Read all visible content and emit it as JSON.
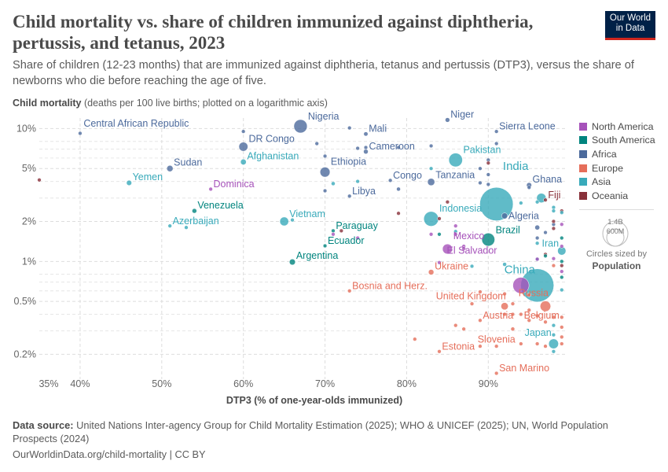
{
  "header": {
    "title": "Child mortality vs. share of children immunized against diphtheria, pertussis, and tetanus, 2023",
    "subtitle": "Share of children (12-23 months) that are immunized against diphtheria, tetanus and pertussis (DTP3), versus the share of newborns who die before reaching the age of five.",
    "logo_line1": "Our World",
    "logo_line2": "in Data"
  },
  "footer": {
    "source_label": "Data source:",
    "source_text": "United Nations Inter-agency Group for Child Mortality Estimation (2025); WHO & UNICEF (2025); UN, World Population Prospects (2024)",
    "url": "OurWorldinData.org/child-mortality | CC BY"
  },
  "size_legend": {
    "large": "1.4B",
    "small": "600M",
    "caption": "Circles sized by",
    "variable": "Population"
  },
  "chart_data": {
    "type": "scatter",
    "ylabel_bold": "Child mortality",
    "ylabel_rest": " (deaths per 100 live births; plotted on a logarithmic axis)",
    "xlabel": "DTP3 (% of one-year-olds immunized)",
    "x_scale": "linear",
    "y_scale": "log",
    "xlim": [
      35,
      99.5
    ],
    "ylim": [
      0.13,
      12
    ],
    "x_ticks": [
      35,
      40,
      50,
      60,
      70,
      80,
      90
    ],
    "x_tick_labels": [
      "35%",
      "40%",
      "50%",
      "60%",
      "70%",
      "80%",
      "90%"
    ],
    "y_ticks": [
      0.2,
      0.5,
      1,
      2,
      5,
      10
    ],
    "y_tick_labels": [
      "0.2%",
      "0.5%",
      "1%",
      "2%",
      "5%",
      "10%"
    ],
    "grid": true,
    "legend_position": "right",
    "regions": [
      {
        "name": "North America",
        "color": "#a652ba"
      },
      {
        "name": "South America",
        "color": "#00847e"
      },
      {
        "name": "Africa",
        "color": "#4c6a9c"
      },
      {
        "name": "Europe",
        "color": "#e56e5a"
      },
      {
        "name": "Asia",
        "color": "#38aaba"
      },
      {
        "name": "Oceania",
        "color": "#883039"
      }
    ],
    "point_fields": [
      "label",
      "region",
      "dtp3_percent",
      "child_mortality_percent",
      "population_millions"
    ],
    "points": [
      [
        "Central African Republic",
        "Africa",
        40,
        9.2,
        5
      ],
      [
        "Nigeria",
        "Africa",
        67,
        10.4,
        228
      ],
      [
        "DR Congo",
        "Africa",
        60,
        7.3,
        105
      ],
      [
        "Afghanistan",
        "Asia",
        60,
        5.6,
        42
      ],
      [
        "Sudan",
        "Africa",
        51,
        5.0,
        50
      ],
      [
        "Yemen",
        "Asia",
        46,
        3.9,
        35
      ],
      [
        "Dominica",
        "North America",
        56,
        3.5,
        0.1
      ],
      [
        "Venezuela",
        "South America",
        54,
        2.4,
        28
      ],
      [
        "Azerbaijan",
        "Asia",
        51,
        1.85,
        10
      ],
      [
        "Vietnam",
        "Asia",
        65,
        2.0,
        100
      ],
      [
        "Ethiopia",
        "Africa",
        70,
        4.7,
        128
      ],
      [
        "Mali",
        "Africa",
        75,
        9.1,
        23
      ],
      [
        "Cameroon",
        "Africa",
        75,
        6.7,
        28
      ],
      [
        "Congo",
        "Africa",
        78,
        4.07,
        6
      ],
      [
        "Libya",
        "Africa",
        73,
        3.1,
        7
      ],
      [
        "Niger",
        "Africa",
        85,
        11.6,
        27
      ],
      [
        "Sierra Leone",
        "Africa",
        91,
        9.5,
        8.6
      ],
      [
        "Pakistan",
        "Asia",
        86,
        5.8,
        240
      ],
      [
        "Tanzania",
        "Africa",
        83,
        3.96,
        67
      ],
      [
        "India",
        "Asia",
        91,
        2.7,
        1430
      ],
      [
        "Ghana",
        "Africa",
        95,
        3.75,
        34
      ],
      [
        "Fiji",
        "Oceania",
        97,
        2.9,
        0.9
      ],
      [
        "Algeria",
        "Africa",
        92,
        2.2,
        46
      ],
      [
        "Indonesia",
        "Asia",
        83,
        2.09,
        278
      ],
      [
        "Brazil",
        "South America",
        90,
        1.46,
        216
      ],
      [
        "Mexico",
        "North America",
        85,
        1.24,
        128
      ],
      [
        "El Salvador",
        "North America",
        87,
        1.3,
        6.3
      ],
      [
        "Iran",
        "Asia",
        99,
        1.2,
        89
      ],
      [
        "Paraguay",
        "South America",
        71,
        1.7,
        6.8
      ],
      [
        "Ecuador",
        "South America",
        70,
        1.31,
        18
      ],
      [
        "Argentina",
        "South America",
        66,
        0.99,
        46
      ],
      [
        "Ukraine",
        "Europe",
        83,
        0.83,
        38
      ],
      [
        "Bosnia and Herz.",
        "Europe",
        73,
        0.6,
        3.2
      ],
      [
        "China",
        "Asia",
        96,
        0.66,
        1410
      ],
      [
        "Russia",
        "Europe",
        97,
        0.46,
        144
      ],
      [
        "United Kingdom",
        "Europe",
        92,
        0.46,
        68
      ],
      [
        "Belgium",
        "Europe",
        95,
        0.36,
        11.8
      ],
      [
        "Austria",
        "Europe",
        89,
        0.36,
        9.1
      ],
      [
        "Japan",
        "Asia",
        98,
        0.24,
        124
      ],
      [
        "Slovenia",
        "Europe",
        91,
        0.23,
        2.1
      ],
      [
        "Estonia",
        "Europe",
        84,
        0.21,
        1.3
      ],
      [
        "San Marino",
        "Europe",
        91,
        0.144,
        0.03
      ],
      [
        "",
        "North America",
        94,
        0.66,
        335
      ],
      [
        "",
        "Asia",
        96.5,
        3.0,
        115
      ],
      [
        "",
        "Oceania",
        35,
        4.1,
        10
      ],
      [
        "",
        "Asia",
        53,
        1.8,
        2
      ],
      [
        "",
        "Asia",
        66,
        2.05,
        3
      ],
      [
        "",
        "Africa",
        60,
        9.5,
        2
      ],
      [
        "",
        "Africa",
        69,
        7.7,
        3
      ],
      [
        "",
        "Africa",
        70,
        6.2,
        5
      ],
      [
        "",
        "Africa",
        73,
        10.1,
        2
      ],
      [
        "",
        "Africa",
        74,
        7.1,
        6
      ],
      [
        "",
        "Africa",
        79,
        7.2,
        3
      ],
      [
        "",
        "Africa",
        83,
        7.4,
        3
      ],
      [
        "",
        "Africa",
        89,
        5.0,
        3
      ],
      [
        "",
        "Africa",
        90,
        5.8,
        4
      ],
      [
        "",
        "Africa",
        90,
        4.5,
        5
      ],
      [
        "",
        "Africa",
        89,
        3.9,
        3
      ],
      [
        "",
        "Africa",
        91,
        7.7,
        3
      ],
      [
        "",
        "Africa",
        95,
        3.6,
        4
      ],
      [
        "",
        "Africa",
        96,
        1.8,
        30
      ],
      [
        "",
        "Africa",
        97,
        1.65,
        12
      ],
      [
        "",
        "Africa",
        79,
        3.5,
        20
      ],
      [
        "",
        "Africa",
        70,
        3.4,
        2
      ],
      [
        "",
        "Africa",
        75,
        7.2,
        2
      ],
      [
        "",
        "Africa",
        90,
        3.8,
        3
      ],
      [
        "",
        "Africa",
        98,
        1.9,
        2
      ],
      [
        "",
        "Africa",
        96,
        1.5,
        5
      ],
      [
        "",
        "Oceania",
        90,
        5.5,
        1
      ],
      [
        "",
        "Oceania",
        85,
        2.8,
        1
      ],
      [
        "",
        "Oceania",
        79,
        2.3,
        1
      ],
      [
        "",
        "Oceania",
        84,
        2.1,
        1
      ],
      [
        "",
        "Oceania",
        98,
        2.0,
        1
      ],
      [
        "",
        "Oceania",
        99,
        2.4,
        1
      ],
      [
        "",
        "Oceania",
        97,
        1.13,
        2
      ],
      [
        "",
        "Oceania",
        99,
        0.93,
        1
      ],
      [
        "",
        "Oceania",
        98,
        1.77,
        1
      ],
      [
        "",
        "Oceania",
        72,
        1.7,
        1
      ],
      [
        "",
        "Asia",
        83,
        5.0,
        1
      ],
      [
        "",
        "Asia",
        74,
        4.0,
        1
      ],
      [
        "",
        "Asia",
        71,
        3.85,
        20
      ],
      [
        "",
        "Asia",
        94,
        2.75,
        3
      ],
      [
        "",
        "Asia",
        96,
        2.8,
        2
      ],
      [
        "",
        "Asia",
        98,
        2.55,
        2
      ],
      [
        "",
        "Asia",
        98,
        2.4,
        2
      ],
      [
        "",
        "Asia",
        99,
        2.33,
        1
      ],
      [
        "",
        "Asia",
        86,
        1.68,
        1
      ],
      [
        "",
        "Asia",
        88,
        0.92,
        1
      ],
      [
        "",
        "Asia",
        96,
        1.04,
        3
      ],
      [
        "",
        "Asia",
        96,
        1.37,
        3
      ],
      [
        "",
        "Asia",
        99,
        0.61,
        2
      ],
      [
        "",
        "Asia",
        98,
        0.33,
        1
      ],
      [
        "",
        "Asia",
        98,
        0.28,
        2
      ],
      [
        "",
        "Asia",
        98,
        0.21,
        1
      ],
      [
        "",
        "Asia",
        92,
        0.95,
        20
      ],
      [
        "",
        "Europe",
        89,
        0.59,
        1
      ],
      [
        "",
        "Europe",
        92,
        0.57,
        1
      ],
      [
        "",
        "Europe",
        93,
        0.48,
        1
      ],
      [
        "",
        "Europe",
        93,
        0.4,
        2
      ],
      [
        "",
        "Europe",
        92,
        0.4,
        2
      ],
      [
        "",
        "Europe",
        94,
        0.4,
        3
      ],
      [
        "",
        "Europe",
        95,
        0.43,
        10
      ],
      [
        "",
        "Europe",
        96,
        0.39,
        17
      ],
      [
        "",
        "Europe",
        97,
        0.35,
        2
      ],
      [
        "",
        "Europe",
        99,
        0.38,
        1
      ],
      [
        "",
        "Europe",
        99,
        0.32,
        1
      ],
      [
        "",
        "Europe",
        99,
        0.27,
        1
      ],
      [
        "",
        "Europe",
        99,
        0.24,
        1
      ],
      [
        "",
        "Europe",
        98,
        0.38,
        1
      ],
      [
        "",
        "Europe",
        94,
        0.24,
        5
      ],
      [
        "",
        "Europe",
        96,
        0.24,
        5
      ],
      [
        "",
        "Europe",
        93,
        0.31,
        20
      ],
      [
        "",
        "Europe",
        86,
        0.33,
        1
      ],
      [
        "",
        "Europe",
        87,
        0.31,
        2
      ],
      [
        "",
        "Europe",
        81,
        0.26,
        1
      ],
      [
        "",
        "Europe",
        89,
        0.23,
        1
      ],
      [
        "",
        "Europe",
        98,
        0.93,
        1
      ],
      [
        "",
        "Europe",
        88,
        0.48,
        1
      ],
      [
        "",
        "Europe",
        95,
        0.56,
        1
      ],
      [
        "",
        "Europe",
        97,
        0.23,
        1
      ],
      [
        "",
        "North America",
        86,
        1.85,
        1
      ],
      [
        "",
        "North America",
        86,
        1.6,
        1
      ],
      [
        "",
        "North America",
        87,
        1.25,
        1
      ],
      [
        "",
        "North America",
        83,
        1.6,
        1
      ],
      [
        "",
        "North America",
        96,
        1.04,
        1
      ],
      [
        "",
        "North America",
        99,
        0.84,
        1
      ],
      [
        "",
        "North America",
        99,
        1.9,
        1
      ],
      [
        "",
        "North America",
        98,
        1.05,
        1
      ],
      [
        "",
        "North America",
        99,
        1.3,
        1
      ],
      [
        "",
        "North America",
        71,
        1.6,
        1
      ],
      [
        "",
        "North America",
        74,
        1.5,
        1
      ],
      [
        "",
        "North America",
        84,
        0.98,
        1
      ],
      [
        "",
        "South America",
        84,
        1.6,
        3
      ],
      [
        "",
        "South America",
        99,
        1.5,
        1
      ],
      [
        "",
        "South America",
        99,
        0.76,
        1
      ],
      [
        "",
        "South America",
        97,
        1.1,
        2
      ],
      [
        "",
        "South America",
        99,
        1.0,
        1
      ]
    ]
  }
}
